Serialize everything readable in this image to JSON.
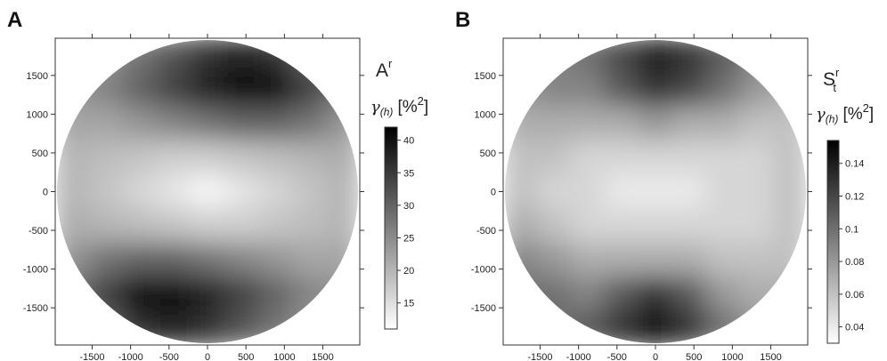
{
  "chart_data": [
    {
      "type": "heatmap",
      "panel": "A",
      "variable": {
        "base": "A",
        "sup": "r"
      },
      "unit": {
        "symbol": "γ",
        "symbol_sub": "(h)",
        "open": "[%",
        "sup": "2",
        "close": "]"
      },
      "xlim": [
        -1980,
        1980
      ],
      "ylim": [
        -1980,
        1980
      ],
      "xticks": [
        -1500,
        -1000,
        -500,
        0,
        500,
        1000,
        1500
      ],
      "yticks": [
        -1500,
        -1000,
        -500,
        0,
        500,
        1000,
        1500
      ],
      "x": [
        -1760,
        -1320,
        -880,
        -440,
        0,
        440,
        880,
        1320,
        1760
      ],
      "y": [
        1760,
        1320,
        880,
        440,
        0,
        -440,
        -880,
        -1320,
        -1760
      ],
      "z": [
        [
          22,
          24,
          28,
          32,
          36,
          38,
          36,
          30,
          26
        ],
        [
          24,
          26,
          30,
          34,
          38,
          41,
          40,
          34,
          28
        ],
        [
          22,
          22,
          24,
          26,
          28,
          30,
          30,
          28,
          24
        ],
        [
          20,
          19,
          18,
          17,
          17,
          18,
          19,
          20,
          21
        ],
        [
          20,
          18,
          16,
          14,
          12,
          14,
          16,
          18,
          20
        ],
        [
          21,
          20,
          19,
          18,
          17,
          17,
          18,
          19,
          20
        ],
        [
          24,
          28,
          30,
          30,
          28,
          26,
          24,
          22,
          22
        ],
        [
          28,
          34,
          40,
          41,
          38,
          34,
          30,
          26,
          24
        ],
        [
          26,
          30,
          36,
          38,
          36,
          32,
          28,
          24,
          22
        ]
      ],
      "clim": [
        11,
        42
      ],
      "cticks": [
        15,
        20,
        25,
        30,
        35,
        40
      ],
      "colormap": [
        "#ffffff",
        "#000000"
      ]
    },
    {
      "type": "heatmap",
      "panel": "B",
      "variable": {
        "base": "S",
        "sub": "t",
        "sup": "r"
      },
      "unit": {
        "symbol": "γ",
        "symbol_sub": "(h)",
        "open": "[%",
        "sup": "2",
        "close": "]"
      },
      "xlim": [
        -1980,
        1980
      ],
      "ylim": [
        -1980,
        1980
      ],
      "xticks": [
        -1500,
        -1000,
        -500,
        0,
        500,
        1000,
        1500
      ],
      "yticks": [
        -1500,
        -1000,
        -500,
        0,
        500,
        1000,
        1500
      ],
      "x": [
        -1760,
        -1320,
        -880,
        -440,
        0,
        440,
        880,
        1320,
        1760
      ],
      "y": [
        1760,
        1320,
        880,
        440,
        0,
        -440,
        -880,
        -1320,
        -1760
      ],
      "z": [
        [
          0.08,
          0.09,
          0.1,
          0.12,
          0.14,
          0.13,
          0.11,
          0.09,
          0.08
        ],
        [
          0.08,
          0.09,
          0.09,
          0.11,
          0.13,
          0.12,
          0.1,
          0.08,
          0.07
        ],
        [
          0.07,
          0.07,
          0.07,
          0.07,
          0.08,
          0.07,
          0.07,
          0.06,
          0.06
        ],
        [
          0.06,
          0.06,
          0.05,
          0.05,
          0.05,
          0.05,
          0.05,
          0.05,
          0.06
        ],
        [
          0.06,
          0.05,
          0.05,
          0.04,
          0.04,
          0.04,
          0.05,
          0.05,
          0.06
        ],
        [
          0.07,
          0.06,
          0.05,
          0.05,
          0.05,
          0.05,
          0.05,
          0.05,
          0.06
        ],
        [
          0.09,
          0.08,
          0.07,
          0.07,
          0.07,
          0.07,
          0.06,
          0.06,
          0.06
        ],
        [
          0.1,
          0.1,
          0.09,
          0.11,
          0.13,
          0.11,
          0.08,
          0.07,
          0.07
        ],
        [
          0.09,
          0.1,
          0.11,
          0.13,
          0.15,
          0.13,
          0.1,
          0.08,
          0.08
        ]
      ],
      "clim": [
        0.03,
        0.154
      ],
      "cticks": [
        0.04,
        0.06,
        0.08,
        0.1,
        0.12,
        0.14
      ],
      "colormap": [
        "#ffffff",
        "#000000"
      ]
    }
  ]
}
